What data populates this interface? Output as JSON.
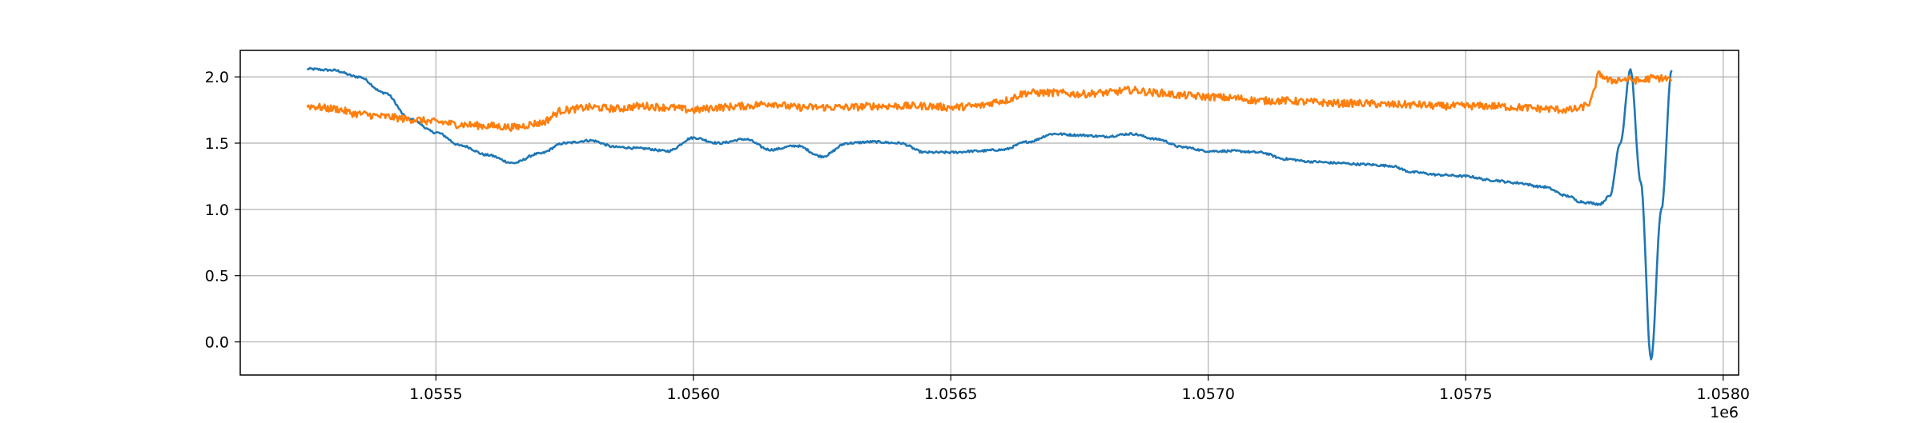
{
  "chart_data": {
    "type": "line",
    "title": "",
    "xlabel": "",
    "ylabel": "",
    "x_offset_label": "1e6",
    "xlim": [
      1055120,
      1058030
    ],
    "ylim": [
      -0.25,
      2.2
    ],
    "x_ticks": [
      1055500,
      1056000,
      1056500,
      1057000,
      1057500,
      1058000
    ],
    "x_tick_labels": [
      "1.0555",
      "1.0560",
      "1.0565",
      "1.0570",
      "1.0575",
      "1.0580"
    ],
    "y_ticks": [
      0.0,
      0.5,
      1.0,
      1.5,
      2.0
    ],
    "y_tick_labels": [
      "0.0",
      "0.5",
      "1.0",
      "1.5",
      "2.0"
    ],
    "grid": true,
    "legend": "none",
    "series": [
      {
        "color": "#1f77b4",
        "noise": 0.008,
        "x": [
          1055250,
          1055300,
          1055350,
          1055400,
          1055450,
          1055500,
          1055550,
          1055600,
          1055650,
          1055700,
          1055750,
          1055800,
          1055850,
          1055900,
          1055950,
          1056000,
          1056050,
          1056100,
          1056150,
          1056200,
          1056250,
          1056300,
          1056350,
          1056400,
          1056450,
          1056500,
          1056550,
          1056600,
          1056650,
          1056700,
          1056750,
          1056800,
          1056850,
          1056900,
          1056950,
          1057000,
          1057050,
          1057100,
          1057150,
          1057200,
          1057250,
          1057300,
          1057350,
          1057400,
          1057450,
          1057500,
          1057550,
          1057600,
          1057650,
          1057700,
          1057720,
          1057740,
          1057760,
          1057780,
          1057800,
          1057820,
          1057840,
          1057860,
          1057880,
          1057900
        ],
        "y": [
          2.06,
          2.05,
          2.0,
          1.88,
          1.68,
          1.58,
          1.48,
          1.41,
          1.35,
          1.42,
          1.5,
          1.52,
          1.47,
          1.46,
          1.44,
          1.54,
          1.5,
          1.53,
          1.45,
          1.48,
          1.4,
          1.5,
          1.51,
          1.5,
          1.43,
          1.43,
          1.44,
          1.45,
          1.51,
          1.57,
          1.56,
          1.55,
          1.57,
          1.53,
          1.47,
          1.44,
          1.44,
          1.43,
          1.38,
          1.36,
          1.35,
          1.34,
          1.33,
          1.28,
          1.26,
          1.25,
          1.22,
          1.2,
          1.17,
          1.1,
          1.06,
          1.05,
          1.04,
          1.1,
          1.5,
          2.05,
          1.2,
          -0.13,
          1.0,
          2.05
        ]
      },
      {
        "color": "#ff7f0e",
        "noise": 0.028,
        "x": [
          1055250,
          1055300,
          1055350,
          1055400,
          1055450,
          1055500,
          1055550,
          1055600,
          1055650,
          1055700,
          1055750,
          1055800,
          1055850,
          1055900,
          1055950,
          1056000,
          1056050,
          1056100,
          1056150,
          1056200,
          1056250,
          1056300,
          1056350,
          1056400,
          1056450,
          1056500,
          1056550,
          1056600,
          1056650,
          1056700,
          1056750,
          1056800,
          1056850,
          1056900,
          1056950,
          1057000,
          1057050,
          1057100,
          1057150,
          1057200,
          1057250,
          1057300,
          1057350,
          1057400,
          1057450,
          1057500,
          1057550,
          1057600,
          1057650,
          1057700,
          1057720,
          1057740,
          1057760,
          1057780,
          1057800,
          1057820,
          1057840,
          1057860,
          1057880,
          1057900
        ],
        "y": [
          1.78,
          1.76,
          1.72,
          1.7,
          1.68,
          1.66,
          1.64,
          1.63,
          1.62,
          1.65,
          1.75,
          1.77,
          1.76,
          1.78,
          1.77,
          1.75,
          1.77,
          1.78,
          1.8,
          1.77,
          1.77,
          1.77,
          1.78,
          1.78,
          1.78,
          1.77,
          1.78,
          1.82,
          1.88,
          1.88,
          1.87,
          1.88,
          1.9,
          1.88,
          1.86,
          1.85,
          1.84,
          1.82,
          1.82,
          1.81,
          1.8,
          1.8,
          1.79,
          1.79,
          1.78,
          1.78,
          1.78,
          1.77,
          1.76,
          1.75,
          1.76,
          1.8,
          2.02,
          1.97,
          1.98,
          1.98,
          1.97,
          1.99,
          1.99,
          1.98
        ]
      }
    ]
  }
}
